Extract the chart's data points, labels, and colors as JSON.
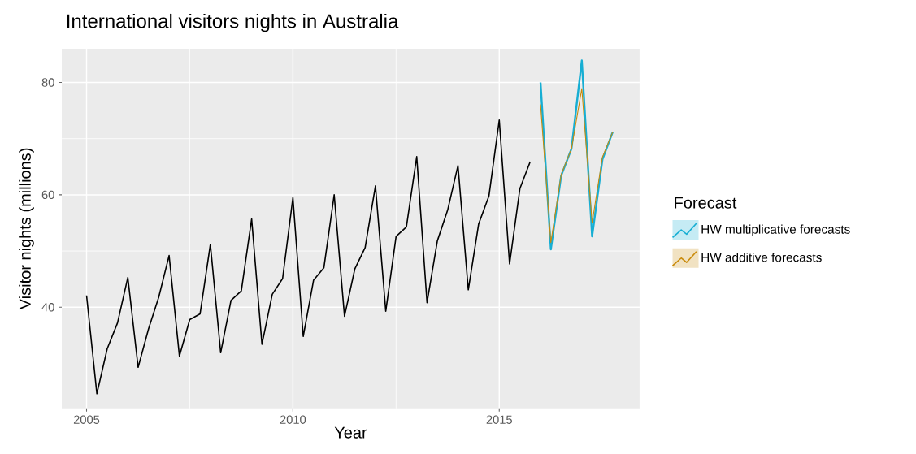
{
  "chart_data": {
    "type": "line",
    "title": "International visitors nights in Australia",
    "xlabel": "Year",
    "ylabel": "Visitor nights (millions)",
    "legend_title": "Forecast",
    "series": [
      {
        "color": "#000000",
        "x": [
          2005,
          2005.25,
          2005.5,
          2005.75,
          2006,
          2006.25,
          2006.5,
          2006.75,
          2007,
          2007.25,
          2007.5,
          2007.75,
          2008,
          2008.25,
          2008.5,
          2008.75,
          2009,
          2009.25,
          2009.5,
          2009.75,
          2010,
          2010.25,
          2010.5,
          2010.75,
          2011,
          2011.25,
          2011.5,
          2011.75,
          2012,
          2012.25,
          2012.5,
          2012.75,
          2013,
          2013.25,
          2013.5,
          2013.75,
          2014,
          2014.25,
          2014.5,
          2014.75,
          2015,
          2015.25,
          2015.5,
          2015.75
        ],
        "values": [
          42.1,
          24.6,
          32.6,
          37.2,
          45.3,
          29.3,
          36.1,
          41.8,
          49.2,
          31.3,
          37.8,
          38.8,
          51.2,
          31.9,
          41.2,
          42.9,
          55.7,
          33.4,
          42.3,
          45.1,
          59.5,
          34.8,
          44.8,
          47.0,
          60.0,
          38.4,
          46.8,
          50.6,
          61.6,
          39.3,
          52.6,
          54.3,
          66.8,
          40.8,
          51.8,
          57.3,
          65.2,
          43.1,
          54.8,
          59.8,
          73.3,
          47.7,
          61.1,
          65.9
        ]
      },
      {
        "name": "HW additive forecasts",
        "color": "#c98a0a",
        "x": [
          2016,
          2016.25,
          2016.5,
          2016.75,
          2017,
          2017.25,
          2017.5,
          2017.75
        ],
        "values": [
          76.1,
          51.5,
          63.6,
          68.2,
          78.9,
          55.0,
          66.7,
          71.2
        ]
      },
      {
        "name": "HW multiplicative forecasts",
        "color": "#17aed3",
        "x": [
          2016,
          2016.25,
          2016.5,
          2016.75,
          2017,
          2017.25,
          2017.5,
          2017.75
        ],
        "values": [
          80.0,
          50.3,
          63.4,
          68.2,
          83.9,
          52.6,
          66.3,
          71.2
        ]
      }
    ],
    "xlim": [
      2004.4,
      2018.4
    ],
    "ylim": [
      22,
      86
    ],
    "xticks": [
      2005,
      2010,
      2015
    ],
    "yticks": [
      40,
      60,
      80
    ],
    "grid": true,
    "legend": "right"
  }
}
